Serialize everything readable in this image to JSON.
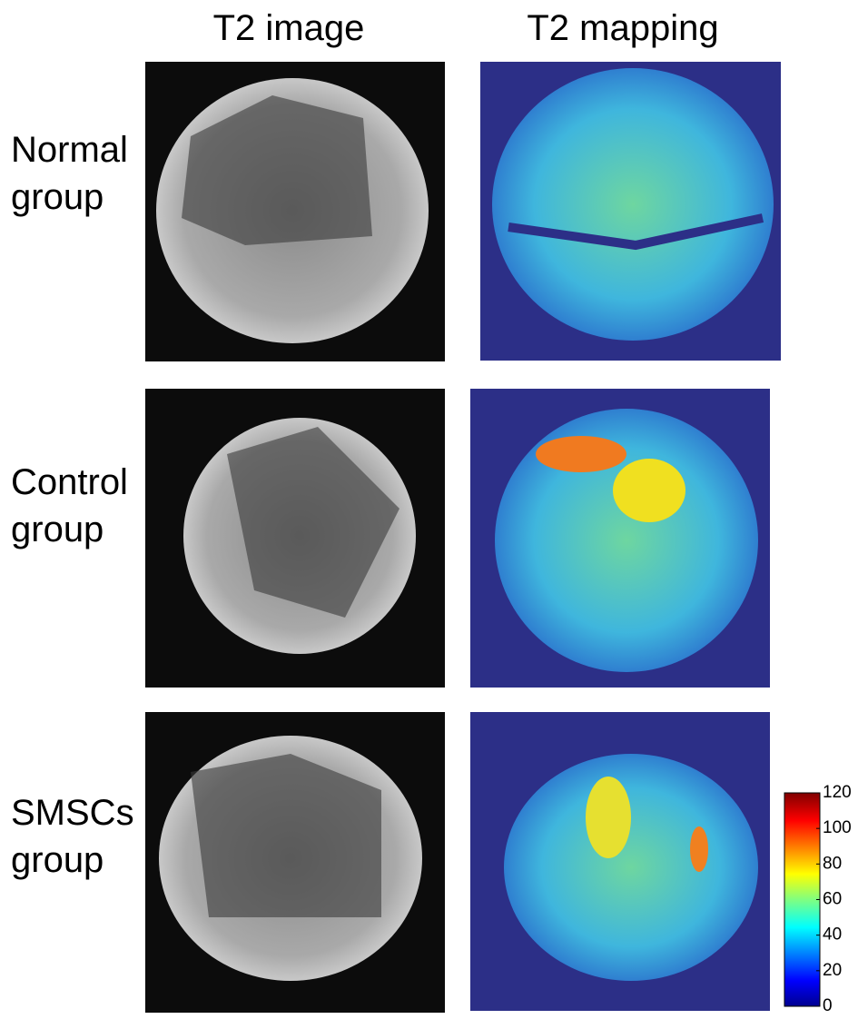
{
  "headers": [
    "T2 image",
    "T2 mapping"
  ],
  "rows": [
    {
      "label": [
        "Normal",
        "group"
      ]
    },
    {
      "label": [
        "Control",
        "group"
      ]
    },
    {
      "label": [
        "SMSCs",
        "group"
      ]
    }
  ],
  "colorbar": {
    "lim": [
      0,
      120
    ],
    "ticks": [
      0,
      20,
      40,
      60,
      80,
      100,
      120
    ]
  }
}
